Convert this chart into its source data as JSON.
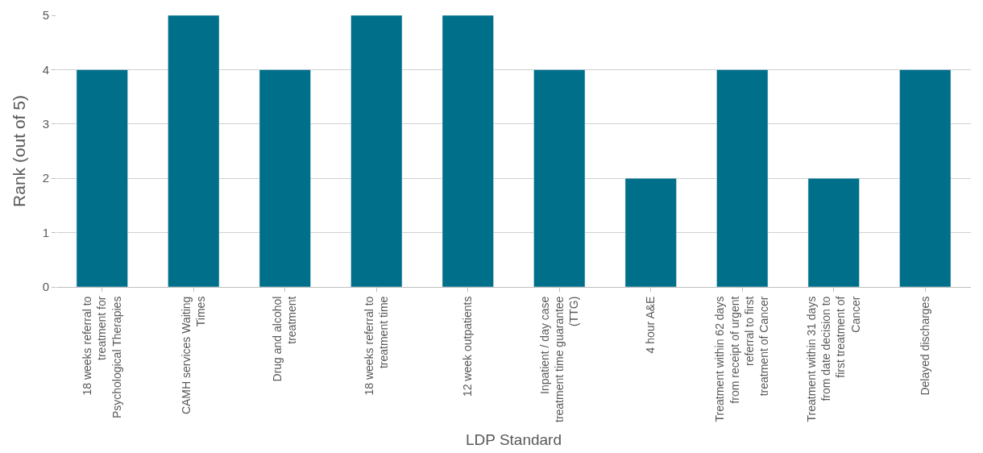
{
  "chart_data": {
    "type": "bar",
    "xlabel": "LDP Standard",
    "ylabel": "Rank (out of 5)",
    "categories": [
      "18 weeks referral to treatment for Psychological Therapies",
      "CAMH services Waiting Times",
      "Drug and alcohol treatment",
      "18 weeks referral to treatment time",
      "12 week outpatients",
      "Inpatient / day case treatment time guarantee (TTG)",
      "4 hour A&E",
      "Treatment within 62 days from receipt of urgent referral to first treatment of Cancer",
      "Treatment within 31 days from date decision to first treatment of Cancer",
      "Delayed discharges"
    ],
    "values": [
      4,
      5,
      4,
      5,
      5,
      4,
      2,
      4,
      2,
      4
    ],
    "color": "#006f8a",
    "ylim": [
      0,
      5
    ],
    "yticks": [
      0,
      1,
      2,
      3,
      4,
      5
    ],
    "grid": "y"
  }
}
